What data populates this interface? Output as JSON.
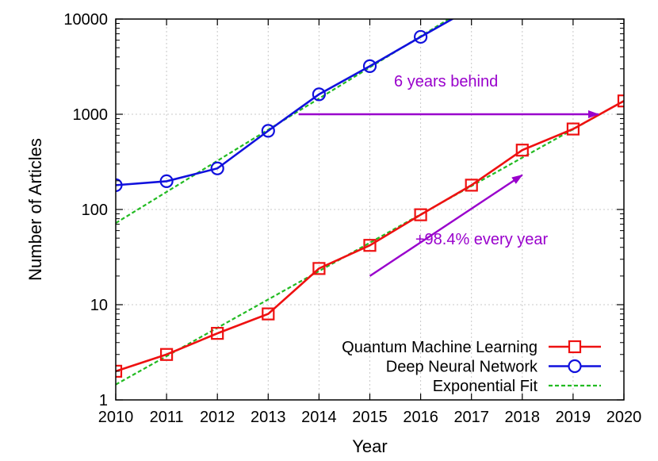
{
  "chart_data": {
    "type": "line",
    "xlabel": "Year",
    "ylabel": "Number of Articles",
    "xlim": [
      2010,
      2020
    ],
    "ylim": [
      1,
      10000
    ],
    "y_scale": "log",
    "grid": true,
    "legend_placement": "bottom-right",
    "x_ticks": [
      "2010",
      "2011",
      "2012",
      "2013",
      "2014",
      "2015",
      "2016",
      "2017",
      "2018",
      "2019",
      "2020"
    ],
    "y_ticks": [
      {
        "value": 1,
        "label": "1"
      },
      {
        "value": 10,
        "label": "10"
      },
      {
        "value": 100,
        "label": "100"
      },
      {
        "value": 1000,
        "label": "1000"
      },
      {
        "value": 10000,
        "label": "10000"
      }
    ],
    "series": [
      {
        "name": "Quantum Machine Learning",
        "color": "#ee1111",
        "marker": "square",
        "x": [
          2010,
          2011,
          2012,
          2013,
          2014,
          2015,
          2016,
          2017,
          2018,
          2019,
          2020
        ],
        "values": [
          2,
          3,
          5,
          8,
          24,
          42,
          88,
          180,
          420,
          700,
          1380
        ]
      },
      {
        "name": "Deep Neural Network",
        "color": "#1111dd",
        "marker": "circle",
        "x": [
          2010,
          2011,
          2012,
          2013,
          2014,
          2015,
          2016,
          2017
        ],
        "values": [
          180,
          198,
          270,
          670,
          1620,
          3200,
          6500,
          13000
        ]
      }
    ],
    "fits": [
      {
        "name": "Exponential Fit",
        "color": "#22bb22",
        "style": "dashed",
        "x": [
          2010,
          2020
        ],
        "values": [
          1.45,
          1380
        ]
      },
      {
        "name": "",
        "color": "#22bb22",
        "style": "dashed",
        "x": [
          2010,
          2017
        ],
        "values": [
          72,
          14000
        ]
      }
    ],
    "annotations": [
      {
        "text": "6 years behind",
        "color": "#9900cc",
        "arrow_from": {
          "x": 2013.6,
          "y": 1000
        },
        "arrow_to": {
          "x": 2019.5,
          "y": 1000
        },
        "label_at": {
          "x": 2016.5,
          "y": 1950
        }
      },
      {
        "text": "+98.4% every year",
        "color": "#9900cc",
        "arrow_from": {
          "x": 2015.0,
          "y": 20
        },
        "arrow_to": {
          "x": 2018.0,
          "y": 230
        },
        "label_at": {
          "x": 2017.2,
          "y": 43
        }
      }
    ]
  }
}
